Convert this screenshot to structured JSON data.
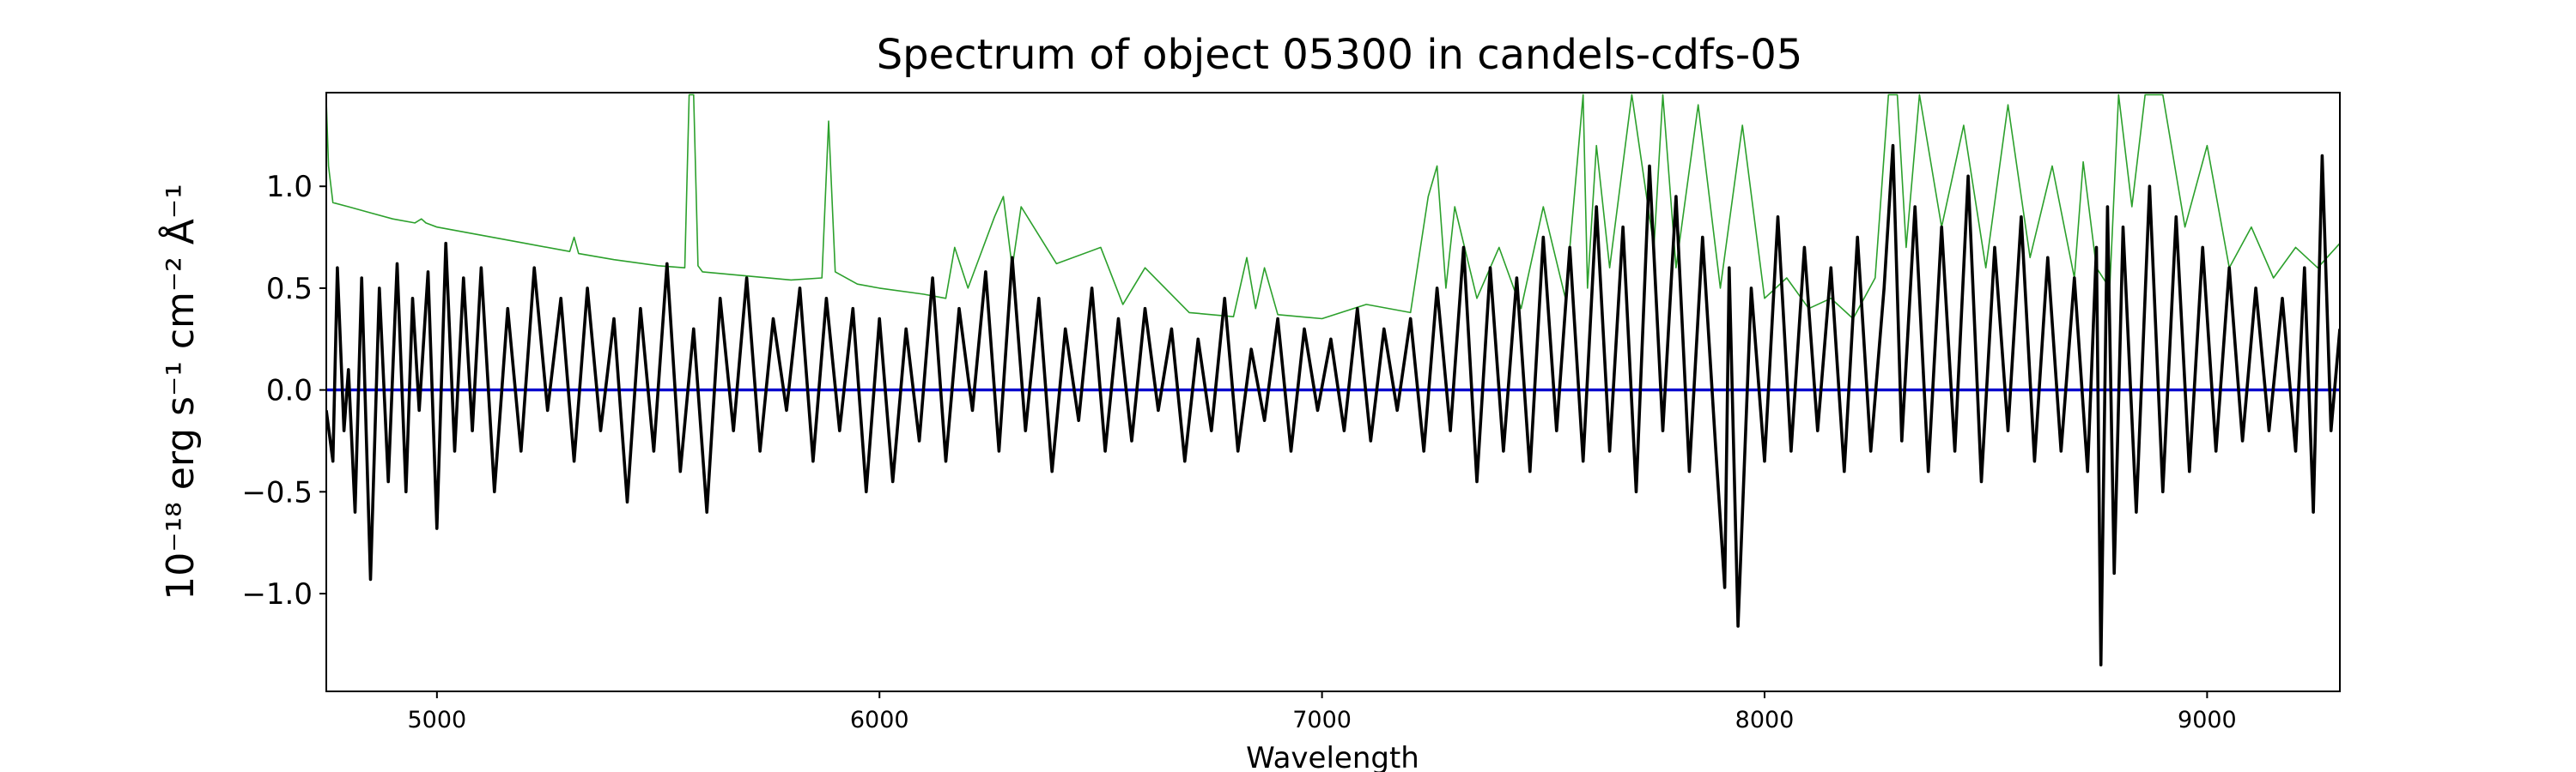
{
  "chart_data": {
    "type": "line",
    "title": "Spectrum of object 05300 in candels-cdfs-05",
    "xlabel": "Wavelength",
    "ylabel": "10⁻¹⁸ erg s⁻¹ cm⁻² Å⁻¹",
    "xlim": [
      4750,
      9300
    ],
    "ylim": [
      -1.48,
      1.46
    ],
    "xticks": [
      5000,
      6000,
      7000,
      8000,
      9000
    ],
    "yticks": [
      -1.0,
      -0.5,
      0.0,
      0.5,
      1.0
    ],
    "ytick_labels": [
      "−1.0",
      "−0.5",
      "0.0",
      "0.5",
      "1.0"
    ],
    "grid": false,
    "colors": {
      "flux": "#000000",
      "error": "#2ca02c",
      "zero": "#0000cc"
    },
    "series": [
      {
        "key": "flux",
        "x": [
          4750,
          4765,
          4775,
          4790,
          4800,
          4815,
          4830,
          4850,
          4870,
          4890,
          4910,
          4930,
          4945,
          4960,
          4980,
          5000,
          5020,
          5040,
          5060,
          5080,
          5100,
          5130,
          5160,
          5190,
          5220,
          5250,
          5280,
          5310,
          5340,
          5370,
          5400,
          5430,
          5460,
          5490,
          5520,
          5550,
          5580,
          5610,
          5640,
          5670,
          5700,
          5730,
          5760,
          5790,
          5820,
          5850,
          5880,
          5910,
          5940,
          5970,
          6000,
          6030,
          6060,
          6090,
          6120,
          6150,
          6180,
          6210,
          6240,
          6270,
          6300,
          6330,
          6360,
          6390,
          6420,
          6450,
          6480,
          6510,
          6540,
          6570,
          6600,
          6630,
          6660,
          6690,
          6720,
          6750,
          6780,
          6810,
          6840,
          6870,
          6900,
          6930,
          6960,
          6990,
          7020,
          7050,
          7080,
          7110,
          7140,
          7170,
          7200,
          7230,
          7260,
          7290,
          7320,
          7350,
          7380,
          7410,
          7440,
          7470,
          7500,
          7530,
          7560,
          7590,
          7620,
          7650,
          7680,
          7710,
          7740,
          7770,
          7800,
          7830,
          7860,
          7890,
          7910,
          7920,
          7940,
          7970,
          8000,
          8030,
          8060,
          8090,
          8120,
          8150,
          8180,
          8210,
          8240,
          8270,
          8290,
          8310,
          8340,
          8370,
          8400,
          8430,
          8460,
          8490,
          8520,
          8550,
          8580,
          8610,
          8640,
          8670,
          8700,
          8730,
          8750,
          8760,
          8775,
          8790,
          8810,
          8840,
          8870,
          8900,
          8930,
          8960,
          8990,
          9020,
          9050,
          9080,
          9110,
          9140,
          9170,
          9200,
          9220,
          9240,
          9260,
          9280,
          9300
        ],
        "y": [
          -0.1,
          -0.35,
          0.6,
          -0.2,
          0.1,
          -0.6,
          0.55,
          -0.93,
          0.5,
          -0.45,
          0.62,
          -0.5,
          0.45,
          -0.1,
          0.58,
          -0.68,
          0.72,
          -0.3,
          0.55,
          -0.2,
          0.6,
          -0.5,
          0.4,
          -0.3,
          0.6,
          -0.1,
          0.45,
          -0.35,
          0.5,
          -0.2,
          0.35,
          -0.55,
          0.4,
          -0.3,
          0.62,
          -0.4,
          0.3,
          -0.6,
          0.45,
          -0.2,
          0.55,
          -0.3,
          0.35,
          -0.1,
          0.5,
          -0.35,
          0.45,
          -0.2,
          0.4,
          -0.5,
          0.35,
          -0.45,
          0.3,
          -0.25,
          0.55,
          -0.35,
          0.4,
          -0.1,
          0.58,
          -0.3,
          0.65,
          -0.2,
          0.45,
          -0.4,
          0.3,
          -0.15,
          0.5,
          -0.3,
          0.35,
          -0.25,
          0.4,
          -0.1,
          0.3,
          -0.35,
          0.25,
          -0.2,
          0.45,
          -0.3,
          0.2,
          -0.15,
          0.35,
          -0.3,
          0.3,
          -0.1,
          0.25,
          -0.2,
          0.4,
          -0.25,
          0.3,
          -0.1,
          0.35,
          -0.3,
          0.5,
          -0.2,
          0.7,
          -0.45,
          0.6,
          -0.3,
          0.55,
          -0.4,
          0.75,
          -0.2,
          0.7,
          -0.35,
          0.9,
          -0.3,
          0.8,
          -0.5,
          1.1,
          -0.2,
          0.95,
          -0.4,
          0.75,
          -0.3,
          -0.97,
          0.6,
          -1.16,
          0.5,
          -0.35,
          0.85,
          -0.3,
          0.7,
          -0.2,
          0.6,
          -0.4,
          0.75,
          -0.3,
          0.5,
          1.2,
          -0.25,
          0.9,
          -0.4,
          0.8,
          -0.3,
          1.05,
          -0.45,
          0.7,
          -0.2,
          0.85,
          -0.35,
          0.65,
          -0.3,
          0.55,
          -0.4,
          0.7,
          -1.35,
          0.9,
          -0.9,
          0.8,
          -0.6,
          1.0,
          -0.5,
          0.85,
          -0.4,
          0.7,
          -0.3,
          0.6,
          -0.25,
          0.5,
          -0.2,
          0.45,
          -0.3,
          0.6,
          -0.6,
          1.15,
          -0.2,
          0.3
        ]
      },
      {
        "key": "error",
        "x": [
          4750,
          4755,
          4765,
          4800,
          4850,
          4900,
          4950,
          4965,
          4975,
          5000,
          5100,
          5200,
          5300,
          5310,
          5320,
          5400,
          5500,
          5560,
          5570,
          5580,
          5590,
          5600,
          5700,
          5800,
          5870,
          5885,
          5900,
          5950,
          6000,
          6100,
          6150,
          6170,
          6200,
          6260,
          6280,
          6300,
          6320,
          6400,
          6500,
          6550,
          6600,
          6700,
          6800,
          6830,
          6850,
          6870,
          6900,
          7000,
          7100,
          7200,
          7240,
          7260,
          7280,
          7300,
          7350,
          7400,
          7450,
          7500,
          7550,
          7590,
          7600,
          7620,
          7650,
          7700,
          7750,
          7770,
          7800,
          7850,
          7900,
          7950,
          8000,
          8050,
          8100,
          8150,
          8200,
          8250,
          8280,
          8300,
          8320,
          8350,
          8400,
          8450,
          8500,
          8550,
          8600,
          8650,
          8700,
          8720,
          8750,
          8780,
          8800,
          8830,
          8860,
          8900,
          8950,
          9000,
          9050,
          9100,
          9150,
          9200,
          9250,
          9300
        ],
        "y": [
          1.42,
          1.1,
          0.92,
          0.9,
          0.87,
          0.84,
          0.82,
          0.84,
          0.82,
          0.8,
          0.76,
          0.72,
          0.68,
          0.75,
          0.67,
          0.64,
          0.61,
          0.6,
          1.45,
          1.45,
          0.61,
          0.58,
          0.56,
          0.54,
          0.55,
          1.32,
          0.58,
          0.52,
          0.5,
          0.47,
          0.45,
          0.7,
          0.5,
          0.85,
          0.95,
          0.6,
          0.9,
          0.62,
          0.7,
          0.42,
          0.6,
          0.38,
          0.36,
          0.65,
          0.4,
          0.6,
          0.37,
          0.35,
          0.42,
          0.38,
          0.95,
          1.1,
          0.5,
          0.9,
          0.45,
          0.7,
          0.4,
          0.9,
          0.45,
          1.45,
          0.5,
          1.2,
          0.6,
          1.45,
          0.7,
          1.45,
          0.6,
          1.4,
          0.5,
          1.3,
          0.45,
          0.55,
          0.4,
          0.45,
          0.35,
          0.55,
          1.45,
          1.45,
          0.7,
          1.45,
          0.8,
          1.3,
          0.6,
          1.4,
          0.65,
          1.1,
          0.55,
          1.12,
          0.6,
          0.5,
          1.45,
          0.9,
          1.45,
          1.45,
          0.8,
          1.2,
          0.6,
          0.8,
          0.55,
          0.7,
          0.6,
          0.72
        ]
      },
      {
        "key": "zero",
        "x": [
          4750,
          9300
        ],
        "y": [
          0,
          0
        ]
      }
    ]
  }
}
